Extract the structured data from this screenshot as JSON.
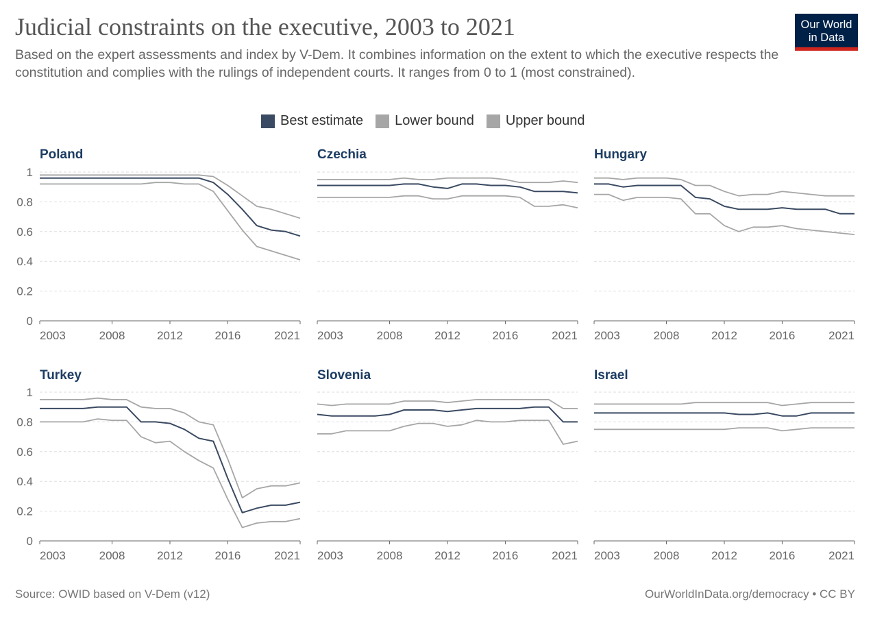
{
  "header": {
    "title": "Judicial constraints on the executive, 2003 to 2021",
    "subtitle": "Based on the expert assessments and index by V-Dem. It combines information on the extent to which the executive respects the constitution and complies with the rulings of independent courts. It ranges from 0 to 1 (most constrained).",
    "logo_line1": "Our World",
    "logo_line2": "in Data"
  },
  "legend": [
    {
      "label": "Best estimate",
      "color": "#3a4a62"
    },
    {
      "label": "Lower bound",
      "color": "#a6a6a6"
    },
    {
      "label": "Upper bound",
      "color": "#a6a6a6"
    }
  ],
  "footer": {
    "source": "Source: OWID based on V-Dem (v12)",
    "credit": "OurWorldInData.org/democracy • CC BY"
  },
  "colors": {
    "best": "#3a4a62",
    "bound": "#a6a6a6",
    "panel_title": "#1d3d63",
    "grid": "#dddddd",
    "axis": "#666666"
  },
  "chart_data": {
    "type": "line",
    "x": [
      2003,
      2004,
      2005,
      2006,
      2007,
      2008,
      2009,
      2010,
      2011,
      2012,
      2013,
      2014,
      2015,
      2016,
      2017,
      2018,
      2019,
      2020,
      2021
    ],
    "x_ticks": [
      "2003",
      "2008",
      "2012",
      "2016",
      "2021"
    ],
    "y_ticks": [
      "0",
      "0.2",
      "0.4",
      "0.6",
      "0.8",
      "1"
    ],
    "ylim": [
      0,
      1
    ],
    "grid": "horizontal dashed",
    "panels": [
      {
        "title": "Poland",
        "series": [
          {
            "name": "Upper bound",
            "values": [
              0.98,
              0.98,
              0.98,
              0.98,
              0.98,
              0.98,
              0.98,
              0.98,
              0.98,
              0.98,
              0.98,
              0.98,
              0.97,
              0.91,
              0.84,
              0.77,
              0.75,
              0.72,
              0.69
            ]
          },
          {
            "name": "Best estimate",
            "values": [
              0.96,
              0.96,
              0.96,
              0.96,
              0.96,
              0.96,
              0.96,
              0.96,
              0.96,
              0.96,
              0.96,
              0.96,
              0.93,
              0.85,
              0.75,
              0.64,
              0.61,
              0.6,
              0.57
            ]
          },
          {
            "name": "Lower bound",
            "values": [
              0.92,
              0.92,
              0.92,
              0.92,
              0.92,
              0.92,
              0.92,
              0.92,
              0.93,
              0.93,
              0.92,
              0.92,
              0.87,
              0.74,
              0.61,
              0.5,
              0.47,
              0.44,
              0.41
            ]
          }
        ]
      },
      {
        "title": "Czechia",
        "series": [
          {
            "name": "Upper bound",
            "values": [
              0.95,
              0.95,
              0.95,
              0.95,
              0.95,
              0.95,
              0.96,
              0.95,
              0.95,
              0.96,
              0.96,
              0.96,
              0.96,
              0.95,
              0.93,
              0.93,
              0.93,
              0.94,
              0.93
            ]
          },
          {
            "name": "Best estimate",
            "values": [
              0.91,
              0.91,
              0.91,
              0.91,
              0.91,
              0.91,
              0.92,
              0.92,
              0.9,
              0.89,
              0.92,
              0.92,
              0.91,
              0.91,
              0.9,
              0.87,
              0.87,
              0.87,
              0.86
            ]
          },
          {
            "name": "Lower bound",
            "values": [
              0.83,
              0.83,
              0.83,
              0.83,
              0.83,
              0.83,
              0.84,
              0.84,
              0.82,
              0.82,
              0.84,
              0.84,
              0.84,
              0.84,
              0.83,
              0.77,
              0.77,
              0.78,
              0.76
            ]
          }
        ]
      },
      {
        "title": "Hungary",
        "series": [
          {
            "name": "Upper bound",
            "values": [
              0.96,
              0.96,
              0.95,
              0.96,
              0.96,
              0.96,
              0.95,
              0.91,
              0.91,
              0.87,
              0.84,
              0.85,
              0.85,
              0.87,
              0.86,
              0.85,
              0.84,
              0.84,
              0.84
            ]
          },
          {
            "name": "Best estimate",
            "values": [
              0.92,
              0.92,
              0.9,
              0.91,
              0.91,
              0.91,
              0.91,
              0.83,
              0.82,
              0.77,
              0.75,
              0.75,
              0.75,
              0.76,
              0.75,
              0.75,
              0.75,
              0.72,
              0.72
            ]
          },
          {
            "name": "Lower bound",
            "values": [
              0.85,
              0.85,
              0.81,
              0.83,
              0.83,
              0.83,
              0.82,
              0.72,
              0.72,
              0.64,
              0.6,
              0.63,
              0.63,
              0.64,
              0.62,
              0.61,
              0.6,
              0.59,
              0.58
            ]
          }
        ]
      },
      {
        "title": "Turkey",
        "series": [
          {
            "name": "Upper bound",
            "values": [
              0.95,
              0.95,
              0.95,
              0.95,
              0.96,
              0.95,
              0.95,
              0.9,
              0.89,
              0.89,
              0.86,
              0.8,
              0.78,
              0.55,
              0.29,
              0.35,
              0.37,
              0.37,
              0.39
            ]
          },
          {
            "name": "Best estimate",
            "values": [
              0.89,
              0.89,
              0.89,
              0.89,
              0.9,
              0.9,
              0.9,
              0.8,
              0.8,
              0.79,
              0.75,
              0.69,
              0.67,
              0.42,
              0.19,
              0.22,
              0.24,
              0.24,
              0.26
            ]
          },
          {
            "name": "Lower bound",
            "values": [
              0.8,
              0.8,
              0.8,
              0.8,
              0.82,
              0.81,
              0.81,
              0.7,
              0.66,
              0.67,
              0.6,
              0.54,
              0.49,
              0.28,
              0.09,
              0.12,
              0.13,
              0.13,
              0.15
            ]
          }
        ]
      },
      {
        "title": "Slovenia",
        "series": [
          {
            "name": "Upper bound",
            "values": [
              0.92,
              0.91,
              0.92,
              0.92,
              0.92,
              0.92,
              0.94,
              0.94,
              0.94,
              0.93,
              0.94,
              0.95,
              0.95,
              0.95,
              0.95,
              0.95,
              0.95,
              0.89,
              0.89
            ]
          },
          {
            "name": "Best estimate",
            "values": [
              0.85,
              0.84,
              0.84,
              0.84,
              0.84,
              0.85,
              0.88,
              0.88,
              0.88,
              0.87,
              0.88,
              0.89,
              0.89,
              0.89,
              0.89,
              0.9,
              0.9,
              0.8,
              0.8
            ]
          },
          {
            "name": "Lower bound",
            "values": [
              0.72,
              0.72,
              0.74,
              0.74,
              0.74,
              0.74,
              0.77,
              0.79,
              0.79,
              0.77,
              0.78,
              0.81,
              0.8,
              0.8,
              0.81,
              0.81,
              0.81,
              0.65,
              0.67
            ]
          }
        ]
      },
      {
        "title": "Israel",
        "series": [
          {
            "name": "Upper bound",
            "values": [
              0.92,
              0.92,
              0.92,
              0.92,
              0.92,
              0.92,
              0.92,
              0.93,
              0.93,
              0.93,
              0.93,
              0.93,
              0.93,
              0.91,
              0.92,
              0.93,
              0.93,
              0.93,
              0.93
            ]
          },
          {
            "name": "Best estimate",
            "values": [
              0.86,
              0.86,
              0.86,
              0.86,
              0.86,
              0.86,
              0.86,
              0.86,
              0.86,
              0.86,
              0.85,
              0.85,
              0.86,
              0.84,
              0.84,
              0.86,
              0.86,
              0.86,
              0.86
            ]
          },
          {
            "name": "Lower bound",
            "values": [
              0.75,
              0.75,
              0.75,
              0.75,
              0.75,
              0.75,
              0.75,
              0.75,
              0.75,
              0.75,
              0.76,
              0.76,
              0.76,
              0.74,
              0.75,
              0.76,
              0.76,
              0.76,
              0.76
            ]
          }
        ]
      }
    ]
  }
}
